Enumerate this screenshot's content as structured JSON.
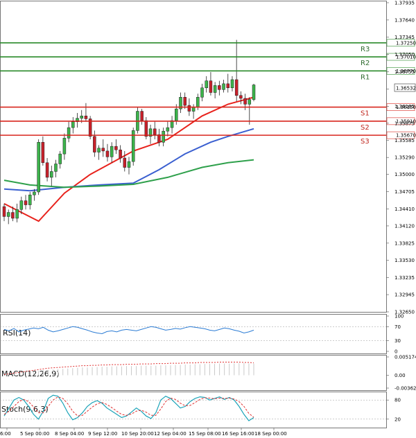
{
  "chart_data": {
    "type": "candlestick",
    "symbol_pair_note": "",
    "y_range": [
      1.3265,
      1.3797
    ],
    "y_ticks": [
      "1.37935",
      "1.37640",
      "1.37345",
      "1.37050",
      "1.36755",
      "1.36460",
      "1.36165",
      "1.35875",
      "1.35585",
      "1.35290",
      "1.35000",
      "1.34705",
      "1.34410",
      "1.34120",
      "1.33825",
      "1.33530",
      "1.33235",
      "1.32945",
      "1.32650"
    ],
    "x_ticks": [
      "6:00",
      "5 Sep 00:00",
      "8 Sep 04:00",
      "9 Sep 12:00",
      "10 Sep 20:00",
      "12 Sep 04:00",
      "15 Sep 08:00",
      "16 Sep 16:00",
      "18 Sep 00:00"
    ],
    "current_price": "1.36532",
    "levels": [
      {
        "name": "R3",
        "value": "1.37250",
        "kind": "resistance"
      },
      {
        "name": "R2",
        "value": "1.37010",
        "kind": "resistance"
      },
      {
        "name": "R1",
        "value": "1.36770",
        "kind": "resistance"
      },
      {
        "name": "S1",
        "value": "1.36150",
        "kind": "support"
      },
      {
        "name": "S2",
        "value": "1.35910",
        "kind": "support"
      },
      {
        "name": "S3",
        "value": "1.35670",
        "kind": "support"
      }
    ],
    "candles": [
      [
        1.3445,
        1.345,
        1.342,
        1.3428
      ],
      [
        1.3428,
        1.344,
        1.3415,
        1.3435
      ],
      [
        1.3435,
        1.3445,
        1.342,
        1.3425
      ],
      [
        1.3425,
        1.345,
        1.3418,
        1.344
      ],
      [
        1.344,
        1.3462,
        1.3432,
        1.3455
      ],
      [
        1.3455,
        1.3465,
        1.344,
        1.3448
      ],
      [
        1.3448,
        1.347,
        1.344,
        1.3465
      ],
      [
        1.3465,
        1.3475,
        1.3455,
        1.347
      ],
      [
        1.347,
        1.356,
        1.3465,
        1.3555
      ],
      [
        1.3555,
        1.3565,
        1.3515,
        1.352
      ],
      [
        1.352,
        1.3528,
        1.3488,
        1.3495
      ],
      [
        1.3495,
        1.3515,
        1.348,
        1.3505
      ],
      [
        1.3505,
        1.3525,
        1.3495,
        1.3518
      ],
      [
        1.3518,
        1.354,
        1.351,
        1.3535
      ],
      [
        1.3535,
        1.357,
        1.3525,
        1.3562
      ],
      [
        1.3562,
        1.359,
        1.3555,
        1.358
      ],
      [
        1.358,
        1.3598,
        1.357,
        1.359
      ],
      [
        1.359,
        1.3605,
        1.358,
        1.3596
      ],
      [
        1.3596,
        1.361,
        1.3588,
        1.36
      ],
      [
        1.36,
        1.3622,
        1.359,
        1.3595
      ],
      [
        1.3595,
        1.36,
        1.356,
        1.3565
      ],
      [
        1.3565,
        1.3575,
        1.353,
        1.3538
      ],
      [
        1.3538,
        1.355,
        1.3525,
        1.3545
      ],
      [
        1.3545,
        1.356,
        1.353,
        1.354
      ],
      [
        1.354,
        1.3552,
        1.3522,
        1.353
      ],
      [
        1.353,
        1.3555,
        1.352,
        1.3548
      ],
      [
        1.3548,
        1.356,
        1.3535,
        1.3542
      ],
      [
        1.3542,
        1.355,
        1.352,
        1.3528
      ],
      [
        1.3528,
        1.354,
        1.3505,
        1.3512
      ],
      [
        1.3512,
        1.353,
        1.35,
        1.3522
      ],
      [
        1.3522,
        1.358,
        1.3515,
        1.3575
      ],
      [
        1.3575,
        1.3615,
        1.357,
        1.3608
      ],
      [
        1.3608,
        1.3612,
        1.3585,
        1.3592
      ],
      [
        1.3592,
        1.3598,
        1.356,
        1.3565
      ],
      [
        1.3565,
        1.3585,
        1.3552,
        1.3578
      ],
      [
        1.3578,
        1.359,
        1.356,
        1.3568
      ],
      [
        1.3568,
        1.3578,
        1.3548,
        1.3555
      ],
      [
        1.3555,
        1.358,
        1.3548,
        1.3574
      ],
      [
        1.3574,
        1.359,
        1.3565,
        1.358
      ],
      [
        1.358,
        1.36,
        1.357,
        1.3592
      ],
      [
        1.3592,
        1.362,
        1.3585,
        1.3612
      ],
      [
        1.3612,
        1.364,
        1.3605,
        1.3632
      ],
      [
        1.3632,
        1.364,
        1.3612,
        1.3618
      ],
      [
        1.3618,
        1.363,
        1.36,
        1.3608
      ],
      [
        1.3608,
        1.362,
        1.3595,
        1.3615
      ],
      [
        1.3615,
        1.3638,
        1.361,
        1.3632
      ],
      [
        1.3632,
        1.3655,
        1.3625,
        1.3648
      ],
      [
        1.3648,
        1.3668,
        1.364,
        1.366
      ],
      [
        1.366,
        1.3675,
        1.3635,
        1.364
      ],
      [
        1.364,
        1.3658,
        1.363,
        1.3652
      ],
      [
        1.3652,
        1.366,
        1.3635,
        1.3645
      ],
      [
        1.3645,
        1.3662,
        1.364,
        1.3655
      ],
      [
        1.3655,
        1.3672,
        1.364,
        1.3648
      ],
      [
        1.3648,
        1.3668,
        1.3642,
        1.3662
      ],
      [
        1.3662,
        1.373,
        1.3625,
        1.3635
      ],
      [
        1.3635,
        1.3642,
        1.362,
        1.363
      ],
      [
        1.363,
        1.3638,
        1.361,
        1.362
      ],
      [
        1.362,
        1.3632,
        1.3585,
        1.3628
      ],
      [
        1.3628,
        1.3655,
        1.3625,
        1.3653
      ]
    ],
    "moving_averages": [
      {
        "name": "MA red",
        "color": "#e8221c",
        "points": [
          [
            0,
            1.345
          ],
          [
            8,
            1.342
          ],
          [
            14,
            1.3468
          ],
          [
            20,
            1.35
          ],
          [
            30,
            1.354
          ],
          [
            38,
            1.356
          ],
          [
            46,
            1.36
          ],
          [
            52,
            1.362
          ],
          [
            58,
            1.3632
          ]
        ]
      },
      {
        "name": "MA blue",
        "color": "#3a5fd0",
        "points": [
          [
            0,
            1.3475
          ],
          [
            6,
            1.3472
          ],
          [
            14,
            1.3478
          ],
          [
            22,
            1.3482
          ],
          [
            30,
            1.3485
          ],
          [
            36,
            1.3508
          ],
          [
            42,
            1.3535
          ],
          [
            48,
            1.3555
          ],
          [
            52,
            1.3565
          ],
          [
            58,
            1.3578
          ]
        ]
      },
      {
        "name": "MA green",
        "color": "#2ea04b",
        "points": [
          [
            0,
            1.349
          ],
          [
            6,
            1.3482
          ],
          [
            14,
            1.3478
          ],
          [
            22,
            1.348
          ],
          [
            30,
            1.3483
          ],
          [
            38,
            1.3495
          ],
          [
            46,
            1.3512
          ],
          [
            52,
            1.352
          ],
          [
            58,
            1.3525
          ]
        ]
      }
    ],
    "rsi": {
      "label": "RSI(14)",
      "ticks": [
        "100",
        "70",
        "30",
        "0"
      ],
      "range": [
        0,
        100
      ],
      "values": [
        62,
        58,
        65,
        55,
        60,
        63,
        66,
        64,
        68,
        60,
        55,
        58,
        62,
        66,
        70,
        68,
        64,
        60,
        55,
        52,
        50,
        56,
        58,
        55,
        60,
        62,
        60,
        58,
        62,
        66,
        70,
        68,
        64,
        60,
        62,
        65,
        63,
        67,
        70,
        68,
        66,
        64,
        60,
        58,
        62,
        66,
        64,
        60,
        57,
        52,
        55,
        60
      ]
    },
    "macd": {
      "label": "MACD(12,26,9)",
      "ticks": [
        "0.005174",
        "0.00",
        "-0.003629"
      ],
      "range": [
        -0.003629,
        0.005174
      ],
      "histogram": [
        0.0,
        0.0002,
        0.0004,
        0.0006,
        0.0008,
        0.0009,
        0.0011,
        0.0012,
        0.0014,
        0.0015,
        0.0016,
        0.0017,
        0.0018,
        0.0019,
        0.002,
        0.0021,
        0.0022,
        0.0022,
        0.0023,
        0.0023,
        0.0024,
        0.0024,
        0.0025,
        0.0025,
        0.0025,
        0.0026,
        0.0026,
        0.0026,
        0.0027,
        0.0027,
        0.0027,
        0.0027,
        0.0028,
        0.0028,
        0.0028,
        0.0029,
        0.0029,
        0.003,
        0.003,
        0.0031,
        0.0031,
        0.0032,
        0.0032,
        0.0032,
        0.0033,
        0.0033,
        0.0033,
        0.0034,
        0.0034,
        0.0034,
        0.0033,
        0.0033
      ],
      "signal": [
        0.0002,
        0.0004,
        0.0006,
        0.0008,
        0.001,
        0.0012,
        0.0014,
        0.0016,
        0.0018,
        0.002,
        0.0021,
        0.0022,
        0.0023,
        0.0024,
        0.0025,
        0.0026,
        0.0027,
        0.0027,
        0.0028,
        0.0028,
        0.0029,
        0.0029,
        0.003,
        0.003,
        0.003,
        0.0031,
        0.0031,
        0.0031,
        0.0032,
        0.0032,
        0.0032,
        0.0033,
        0.0033,
        0.0033,
        0.0034,
        0.0034,
        0.0034,
        0.0035,
        0.0035,
        0.0035,
        0.0036,
        0.0036,
        0.0036,
        0.0036,
        0.0037,
        0.0037,
        0.0037,
        0.0037,
        0.0037,
        0.0036,
        0.0036,
        0.0035
      ]
    },
    "stoch": {
      "label": "Stoch(9,6,3)",
      "ticks": [
        "80",
        "20"
      ],
      "range": [
        0,
        100
      ],
      "main": [
        30,
        55,
        80,
        88,
        80,
        60,
        35,
        20,
        45,
        85,
        95,
        92,
        70,
        40,
        18,
        25,
        40,
        60,
        72,
        78,
        70,
        55,
        45,
        35,
        25,
        30,
        42,
        55,
        45,
        30,
        22,
        40,
        80,
        92,
        85,
        70,
        55,
        60,
        75,
        85,
        90,
        88,
        80,
        85,
        90,
        82,
        88,
        80,
        60,
        35,
        15,
        25
      ],
      "signal": [
        35,
        45,
        60,
        75,
        82,
        75,
        58,
        40,
        40,
        60,
        80,
        90,
        85,
        68,
        45,
        30,
        32,
        45,
        58,
        68,
        72,
        66,
        56,
        45,
        35,
        32,
        36,
        45,
        48,
        42,
        32,
        32,
        52,
        75,
        86,
        82,
        70,
        62,
        63,
        72,
        82,
        87,
        86,
        84,
        86,
        85,
        86,
        83,
        75,
        60,
        38,
        26
      ]
    }
  }
}
